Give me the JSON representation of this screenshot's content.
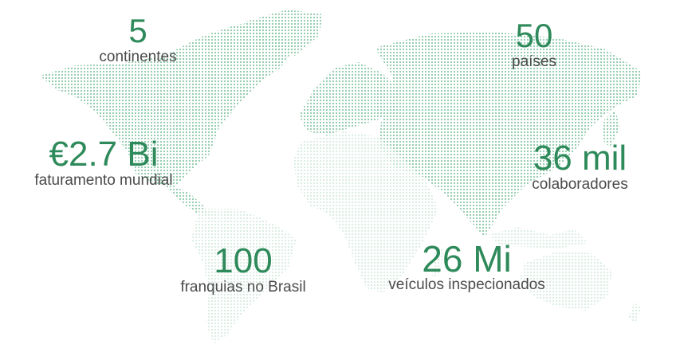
{
  "colors": {
    "number": "#2e8a5a",
    "label": "#4a4a4a",
    "map_dark": "#8cc9a9",
    "map_light": "#cfe8da"
  },
  "stats": [
    {
      "value": "5",
      "label": "continentes"
    },
    {
      "value": "50",
      "label": "países"
    },
    {
      "value": "€2.7 Bi",
      "label": "faturamento mundial"
    },
    {
      "value": "36 mil",
      "label": "colaboradores"
    },
    {
      "value": "100",
      "label": "franquias no Brasil"
    },
    {
      "value": "26 Mi",
      "label": "veículos inspecionados"
    }
  ]
}
